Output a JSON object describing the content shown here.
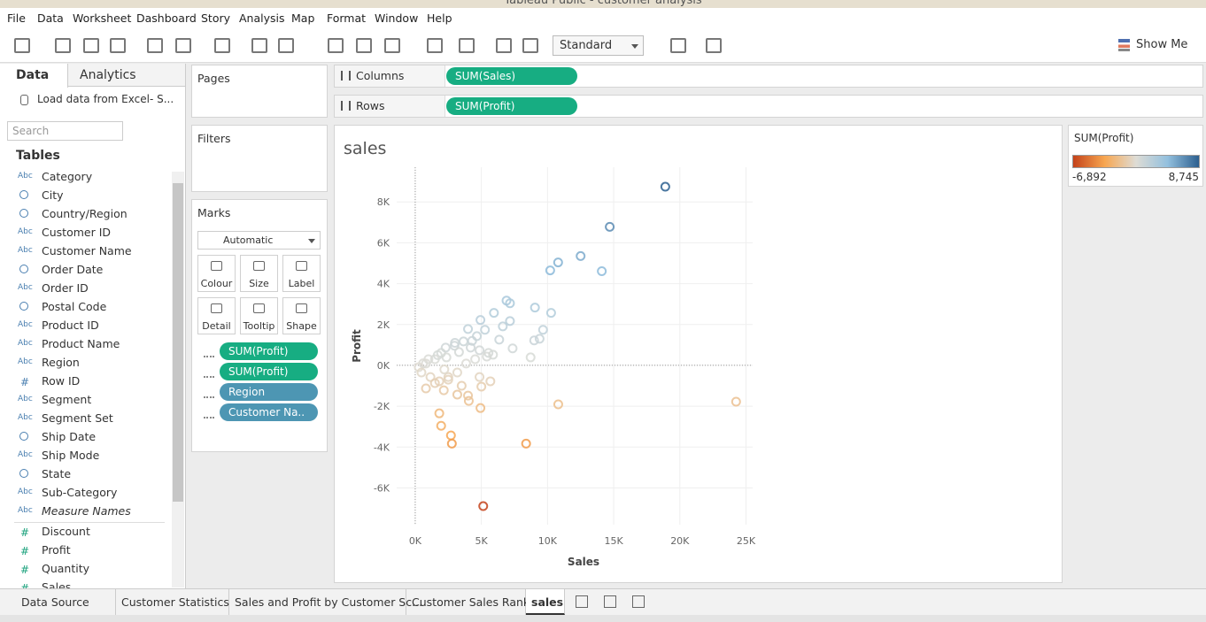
{
  "window_title": "Tableau Public - customer analysis",
  "menu": [
    "File",
    "Data",
    "Worksheet",
    "Dashboard",
    "Story",
    "Analysis",
    "Map",
    "Format",
    "Window",
    "Help"
  ],
  "toolbar": {
    "fit": "Standard",
    "show_me": "Show Me"
  },
  "side_tabs": [
    "Data",
    "Analytics"
  ],
  "data_source": "Load data from Excel- S...",
  "search_placeholder": "Search",
  "tables_heading": "Tables",
  "dimensions": [
    {
      "icon": "Abc",
      "name": "Category"
    },
    {
      "icon": null,
      "name": "City"
    },
    {
      "icon": null,
      "name": "Country/Region"
    },
    {
      "icon": "Abc",
      "name": "Customer ID"
    },
    {
      "icon": "Abc",
      "name": "Customer Name"
    },
    {
      "icon": null,
      "name": "Order Date"
    },
    {
      "icon": "Abc",
      "name": "Order ID"
    },
    {
      "icon": null,
      "name": "Postal Code"
    },
    {
      "icon": "Abc",
      "name": "Product ID"
    },
    {
      "icon": "Abc",
      "name": "Product Name"
    },
    {
      "icon": "Abc",
      "name": "Region"
    },
    {
      "icon": "#",
      "name": "Row ID"
    },
    {
      "icon": "Abc",
      "name": "Segment"
    },
    {
      "icon": "Abc",
      "name": "Segment Set"
    },
    {
      "icon": null,
      "name": "Ship Date"
    },
    {
      "icon": "Abc",
      "name": "Ship Mode"
    },
    {
      "icon": null,
      "name": "State"
    },
    {
      "icon": "Abc",
      "name": "Sub-Category"
    },
    {
      "icon": "Abc",
      "name": "Measure Names"
    }
  ],
  "measures": [
    {
      "icon": "#",
      "name": "Discount"
    },
    {
      "icon": "#",
      "name": "Profit"
    },
    {
      "icon": "#",
      "name": "Quantity"
    },
    {
      "icon": "#",
      "name": "Sales"
    }
  ],
  "shelves": {
    "pages": "Pages",
    "filters": "Filters",
    "columns": "Columns",
    "columns_pill": "SUM(Sales)",
    "rows": "Rows",
    "rows_pill": "SUM(Profit)"
  },
  "marks": {
    "title": "Marks",
    "mark_type": "Automatic",
    "buttons": [
      "Colour",
      "Size",
      "Label",
      "Detail",
      "Tooltip",
      "Shape"
    ],
    "pills": [
      {
        "text": "SUM(Profit)",
        "color": "#17ad82"
      },
      {
        "text": "SUM(Profit)",
        "color": "#17ad82"
      },
      {
        "text": "Region",
        "color": "#4d96b3"
      },
      {
        "text": "Customer Na..",
        "color": "#4d96b3"
      }
    ]
  },
  "legend": {
    "title": "SUM(Profit)",
    "min": {
      "value": -6892,
      "label": "-6,892"
    },
    "max": {
      "value": 8745,
      "label": "8,745"
    },
    "colors": [
      "#c4421a",
      "#f7a650",
      "#dedcd5",
      "#93c0de",
      "#2c5f8f"
    ]
  },
  "tabs": [
    "Data Source",
    "Customer Statistics",
    "Sales and Profit by Customer Sc...",
    "Customer Sales Rank",
    "sales"
  ],
  "chart_data": {
    "type": "scatter",
    "title": "sales",
    "x_label": "Sales",
    "y_label": "Profit",
    "xlim": [
      -1400,
      25500
    ],
    "ylim": [
      -7800,
      9700
    ],
    "xticks": [
      {
        "value": 0,
        "label": "0K"
      },
      {
        "value": 5000,
        "label": "5K"
      },
      {
        "value": 10000,
        "label": "10K"
      },
      {
        "value": 15000,
        "label": "15K"
      },
      {
        "value": 20000,
        "label": "20K"
      },
      {
        "value": 25000,
        "label": "25K"
      }
    ],
    "yticks": [
      {
        "value": -6000,
        "label": "-6K"
      },
      {
        "value": -4000,
        "label": "-4K"
      },
      {
        "value": -2000,
        "label": "-2K"
      },
      {
        "value": 0,
        "label": "0K"
      },
      {
        "value": 2000,
        "label": "2K"
      },
      {
        "value": 4000,
        "label": "4K"
      },
      {
        "value": 6000,
        "label": "6K"
      },
      {
        "value": 8000,
        "label": "8K"
      }
    ],
    "grid": true,
    "series": [
      {
        "name": "SUM(Profit)",
        "x": [
          18900,
          14700,
          12500,
          10800,
          10200,
          14100,
          9050,
          10270,
          6900,
          7160,
          5950,
          9660,
          9400,
          8990,
          8720,
          7360,
          6620,
          7160,
          4930,
          3990,
          5270,
          4660,
          3650,
          2970,
          2300,
          1960,
          1490,
          810,
          270,
          470,
          1150,
          1820,
          2500,
          3180,
          3850,
          4530,
          5540,
          6350,
          5880,
          5410,
          4860,
          4190,
          3310,
          2360,
          24250,
          10810,
          8380,
          5140,
          2700,
          2770,
          1960,
          1820,
          4930,
          4050,
          5000,
          5680,
          4860,
          3510,
          3990,
          810,
          1490,
          2500,
          3180,
          2160,
          1000,
          1700,
          2200,
          600,
          3000,
          4300
        ],
        "y": [
          8745,
          6780,
          5350,
          5040,
          4650,
          4610,
          2830,
          2570,
          3170,
          3040,
          2570,
          1740,
          1300,
          1220,
          390,
          830,
          1910,
          2170,
          2220,
          1780,
          1740,
          1430,
          1170,
          960,
          870,
          610,
          300,
          90,
          -90,
          -350,
          -570,
          -780,
          -700,
          -350,
          90,
          300,
          610,
          1260,
          520,
          430,
          740,
          870,
          650,
          390,
          -1780,
          -1910,
          -3830,
          -6892,
          -3430,
          -3830,
          -2960,
          -2350,
          -2090,
          -1740,
          -1040,
          -780,
          -570,
          -1000,
          -1480,
          -1130,
          -870,
          -570,
          -1430,
          -1220,
          300,
          500,
          -200,
          100,
          1100,
          1200
        ]
      }
    ]
  }
}
